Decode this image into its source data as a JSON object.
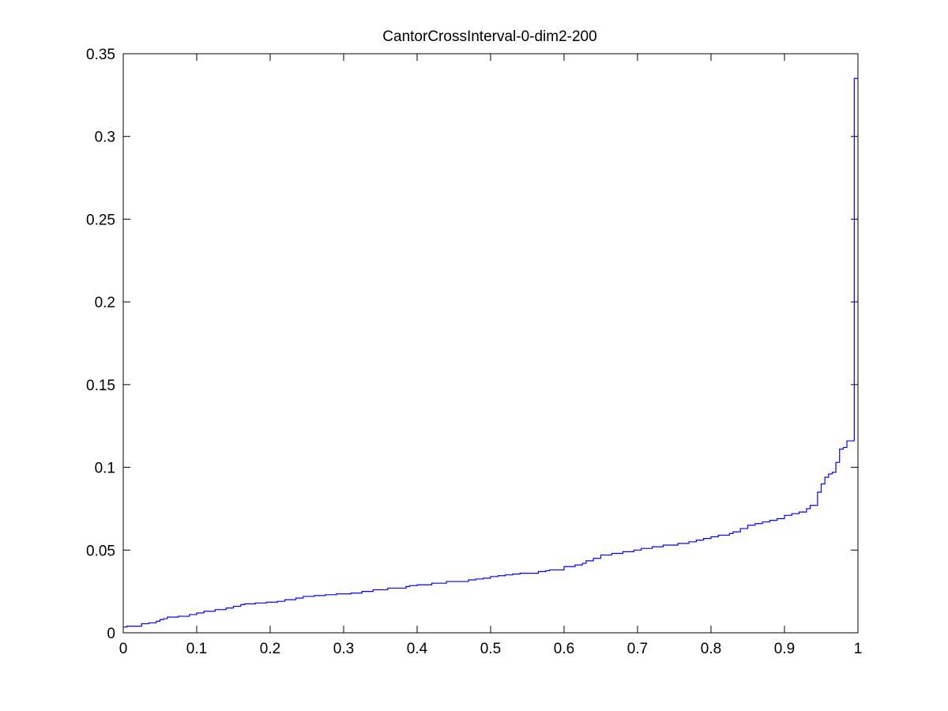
{
  "chart_data": {
    "type": "line",
    "style": "step",
    "title": "CantorCrossInterval-0-dim2-200",
    "xlabel": "",
    "ylabel": "",
    "xlim": [
      0,
      1
    ],
    "ylim": [
      0,
      0.35
    ],
    "grid": false,
    "legend": "none",
    "series_color": "#0000ff",
    "x_ticks": [
      0,
      0.1,
      0.2,
      0.3,
      0.4,
      0.5,
      0.6,
      0.7,
      0.8,
      0.9,
      1
    ],
    "x_tick_labels": [
      "0",
      "0.1",
      "0.2",
      "0.3",
      "0.4",
      "0.5",
      "0.6",
      "0.7",
      "0.8",
      "0.9",
      "1"
    ],
    "y_ticks": [
      0,
      0.05,
      0.1,
      0.15,
      0.2,
      0.25,
      0.3,
      0.35
    ],
    "y_tick_labels": [
      "0",
      "0.05",
      "0.1",
      "0.15",
      "0.2",
      "0.25",
      "0.3",
      "0.35"
    ],
    "series": [
      {
        "x": [
          0,
          0.005,
          0.025,
          0.035,
          0.045,
          0.05,
          0.055,
          0.06,
          0.075,
          0.09,
          0.1,
          0.11,
          0.125,
          0.14,
          0.15,
          0.16,
          0.165,
          0.18,
          0.195,
          0.21,
          0.22,
          0.235,
          0.245,
          0.26,
          0.275,
          0.29,
          0.31,
          0.325,
          0.34,
          0.36,
          0.375,
          0.385,
          0.39,
          0.4,
          0.42,
          0.44,
          0.46,
          0.47,
          0.48,
          0.49,
          0.5,
          0.51,
          0.52,
          0.53,
          0.54,
          0.55,
          0.565,
          0.575,
          0.58,
          0.6,
          0.615,
          0.625,
          0.63,
          0.64,
          0.65,
          0.665,
          0.68,
          0.695,
          0.705,
          0.72,
          0.735,
          0.755,
          0.77,
          0.78,
          0.79,
          0.8,
          0.81,
          0.825,
          0.83,
          0.84,
          0.85,
          0.86,
          0.87,
          0.88,
          0.89,
          0.9,
          0.91,
          0.92,
          0.93,
          0.935,
          0.945,
          0.95,
          0.955,
          0.96,
          0.965,
          0.97,
          0.975,
          0.98,
          0.985,
          0.99,
          0.995,
          1.0
        ],
        "y": [
          0.0035,
          0.004,
          0.0055,
          0.006,
          0.007,
          0.008,
          0.0085,
          0.0095,
          0.01,
          0.011,
          0.012,
          0.013,
          0.014,
          0.015,
          0.016,
          0.017,
          0.0175,
          0.018,
          0.0185,
          0.019,
          0.02,
          0.021,
          0.022,
          0.0225,
          0.023,
          0.0235,
          0.024,
          0.025,
          0.026,
          0.027,
          0.027,
          0.028,
          0.0285,
          0.029,
          0.03,
          0.031,
          0.031,
          0.032,
          0.0325,
          0.033,
          0.034,
          0.0345,
          0.035,
          0.0355,
          0.036,
          0.036,
          0.037,
          0.0375,
          0.038,
          0.04,
          0.041,
          0.042,
          0.0435,
          0.045,
          0.047,
          0.048,
          0.049,
          0.05,
          0.051,
          0.052,
          0.053,
          0.054,
          0.055,
          0.056,
          0.057,
          0.058,
          0.059,
          0.06,
          0.061,
          0.063,
          0.065,
          0.066,
          0.067,
          0.068,
          0.069,
          0.071,
          0.072,
          0.073,
          0.075,
          0.077,
          0.085,
          0.09,
          0.094,
          0.096,
          0.097,
          0.103,
          0.111,
          0.112,
          0.116,
          0.116,
          0.335,
          0.335
        ]
      }
    ]
  }
}
